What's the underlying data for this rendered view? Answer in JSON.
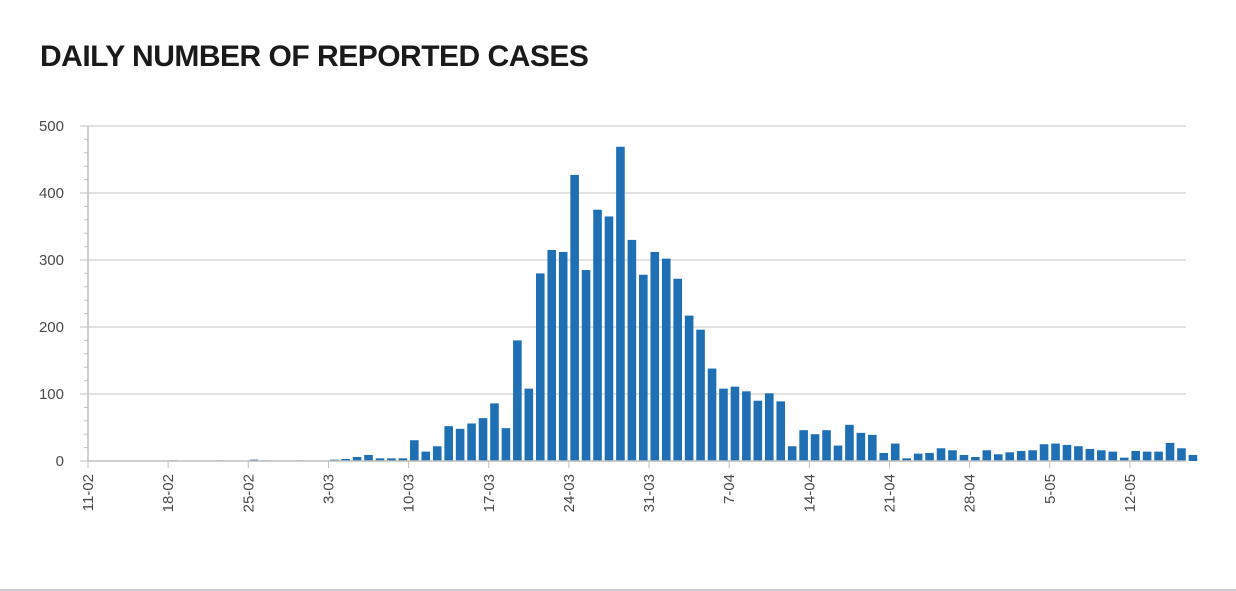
{
  "title": "DAILY NUMBER OF REPORTED CASES",
  "colors": {
    "bar": "#1f6fb4",
    "grid": "#d9d9d9",
    "axis": "#bfbfbf"
  },
  "chart_data": {
    "type": "bar",
    "title": "DAILY NUMBER OF REPORTED CASES",
    "xlabel": "",
    "ylabel": "",
    "ylim": [
      0,
      500
    ],
    "yticks": [
      0,
      100,
      200,
      300,
      400,
      500
    ],
    "grid": true,
    "legend": "none",
    "xtick_labels": [
      "11-02",
      "18-02",
      "25-02",
      "3-03",
      "10-03",
      "17-03",
      "24-03",
      "31-03",
      "7-04",
      "14-04",
      "21-04",
      "28-04",
      "5-05",
      "12-05"
    ],
    "start_date": "11-02",
    "values": [
      0,
      0,
      0,
      0,
      0,
      0,
      0,
      1,
      0,
      0,
      0,
      1,
      0,
      0,
      2,
      1,
      0,
      0,
      1,
      0,
      0,
      2,
      3,
      6,
      9,
      4,
      4,
      4,
      31,
      14,
      22,
      52,
      48,
      56,
      64,
      86,
      49,
      180,
      108,
      280,
      315,
      312,
      427,
      285,
      375,
      365,
      469,
      330,
      278,
      312,
      302,
      272,
      217,
      196,
      138,
      108,
      111,
      104,
      90,
      101,
      89,
      22,
      46,
      40,
      46,
      23,
      54,
      42,
      39,
      12,
      26,
      4,
      11,
      12,
      19,
      16,
      9,
      6,
      16,
      10,
      13,
      15,
      16,
      25,
      26,
      24,
      22,
      18,
      16,
      14,
      5,
      15,
      14,
      14,
      27,
      19,
      9
    ]
  }
}
